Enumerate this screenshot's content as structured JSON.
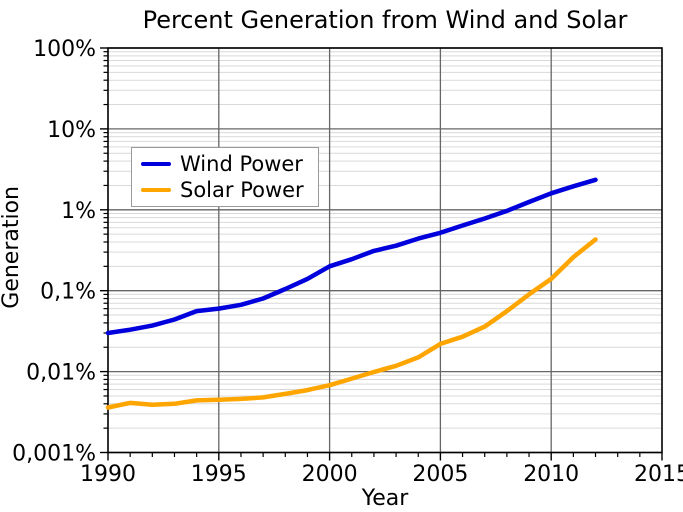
{
  "title": "Percent Generation from Wind and Solar",
  "axes": {
    "x": {
      "label": "Year",
      "min": 1990,
      "max": 2015,
      "major_tick_values": [
        1990,
        1995,
        2000,
        2005,
        2010,
        2015
      ],
      "major_tick_labels": [
        "1990",
        "1995",
        "2000",
        "2005",
        "2010",
        "2015"
      ],
      "minor_tick_step": 1
    },
    "y": {
      "label": "Generation",
      "scale": "log",
      "min": 0.001,
      "max": 100,
      "major_tick_values": [
        100,
        10,
        1,
        0.1,
        0.01,
        0.001
      ],
      "major_tick_labels": [
        "100%",
        "10%",
        "1%",
        "0,1%",
        "0,01%",
        "0,001%"
      ]
    }
  },
  "legend": {
    "items": [
      {
        "label": "Wind Power",
        "color": "#0000dd"
      },
      {
        "label": "Solar Power",
        "color": "#ffa500"
      }
    ]
  },
  "colors": {
    "wind": "#0000dd",
    "solar": "#ffa500",
    "frame": "#000000",
    "major_grid": "#666666",
    "minor_grid": "#d9d9d9"
  },
  "chart_data": {
    "type": "line",
    "title": "Percent Generation from Wind and Solar",
    "xlabel": "Year",
    "ylabel": "Generation",
    "y_scale": "log",
    "y_unit": "percent",
    "xlim": [
      1990,
      2015
    ],
    "ylim_percent": [
      0.001,
      100
    ],
    "grid": true,
    "legend_position": "upper left",
    "x": [
      1990,
      1991,
      1992,
      1993,
      1994,
      1995,
      1996,
      1997,
      1998,
      1999,
      2000,
      2001,
      2002,
      2003,
      2004,
      2005,
      2006,
      2007,
      2008,
      2009,
      2010,
      2011,
      2012
    ],
    "series": [
      {
        "name": "Wind Power",
        "color": "#0000dd",
        "values": [
          0.03,
          0.033,
          0.037,
          0.044,
          0.056,
          0.06,
          0.067,
          0.08,
          0.105,
          0.14,
          0.2,
          0.245,
          0.31,
          0.36,
          0.44,
          0.52,
          0.64,
          0.78,
          0.97,
          1.25,
          1.6,
          1.95,
          2.35
        ]
      },
      {
        "name": "Solar Power",
        "color": "#ffa500",
        "values": [
          0.0036,
          0.0041,
          0.0039,
          0.004,
          0.0044,
          0.0045,
          0.0046,
          0.0048,
          0.0053,
          0.0059,
          0.0068,
          0.0082,
          0.0099,
          0.0118,
          0.015,
          0.022,
          0.027,
          0.036,
          0.056,
          0.09,
          0.14,
          0.26,
          0.43
        ]
      }
    ]
  }
}
